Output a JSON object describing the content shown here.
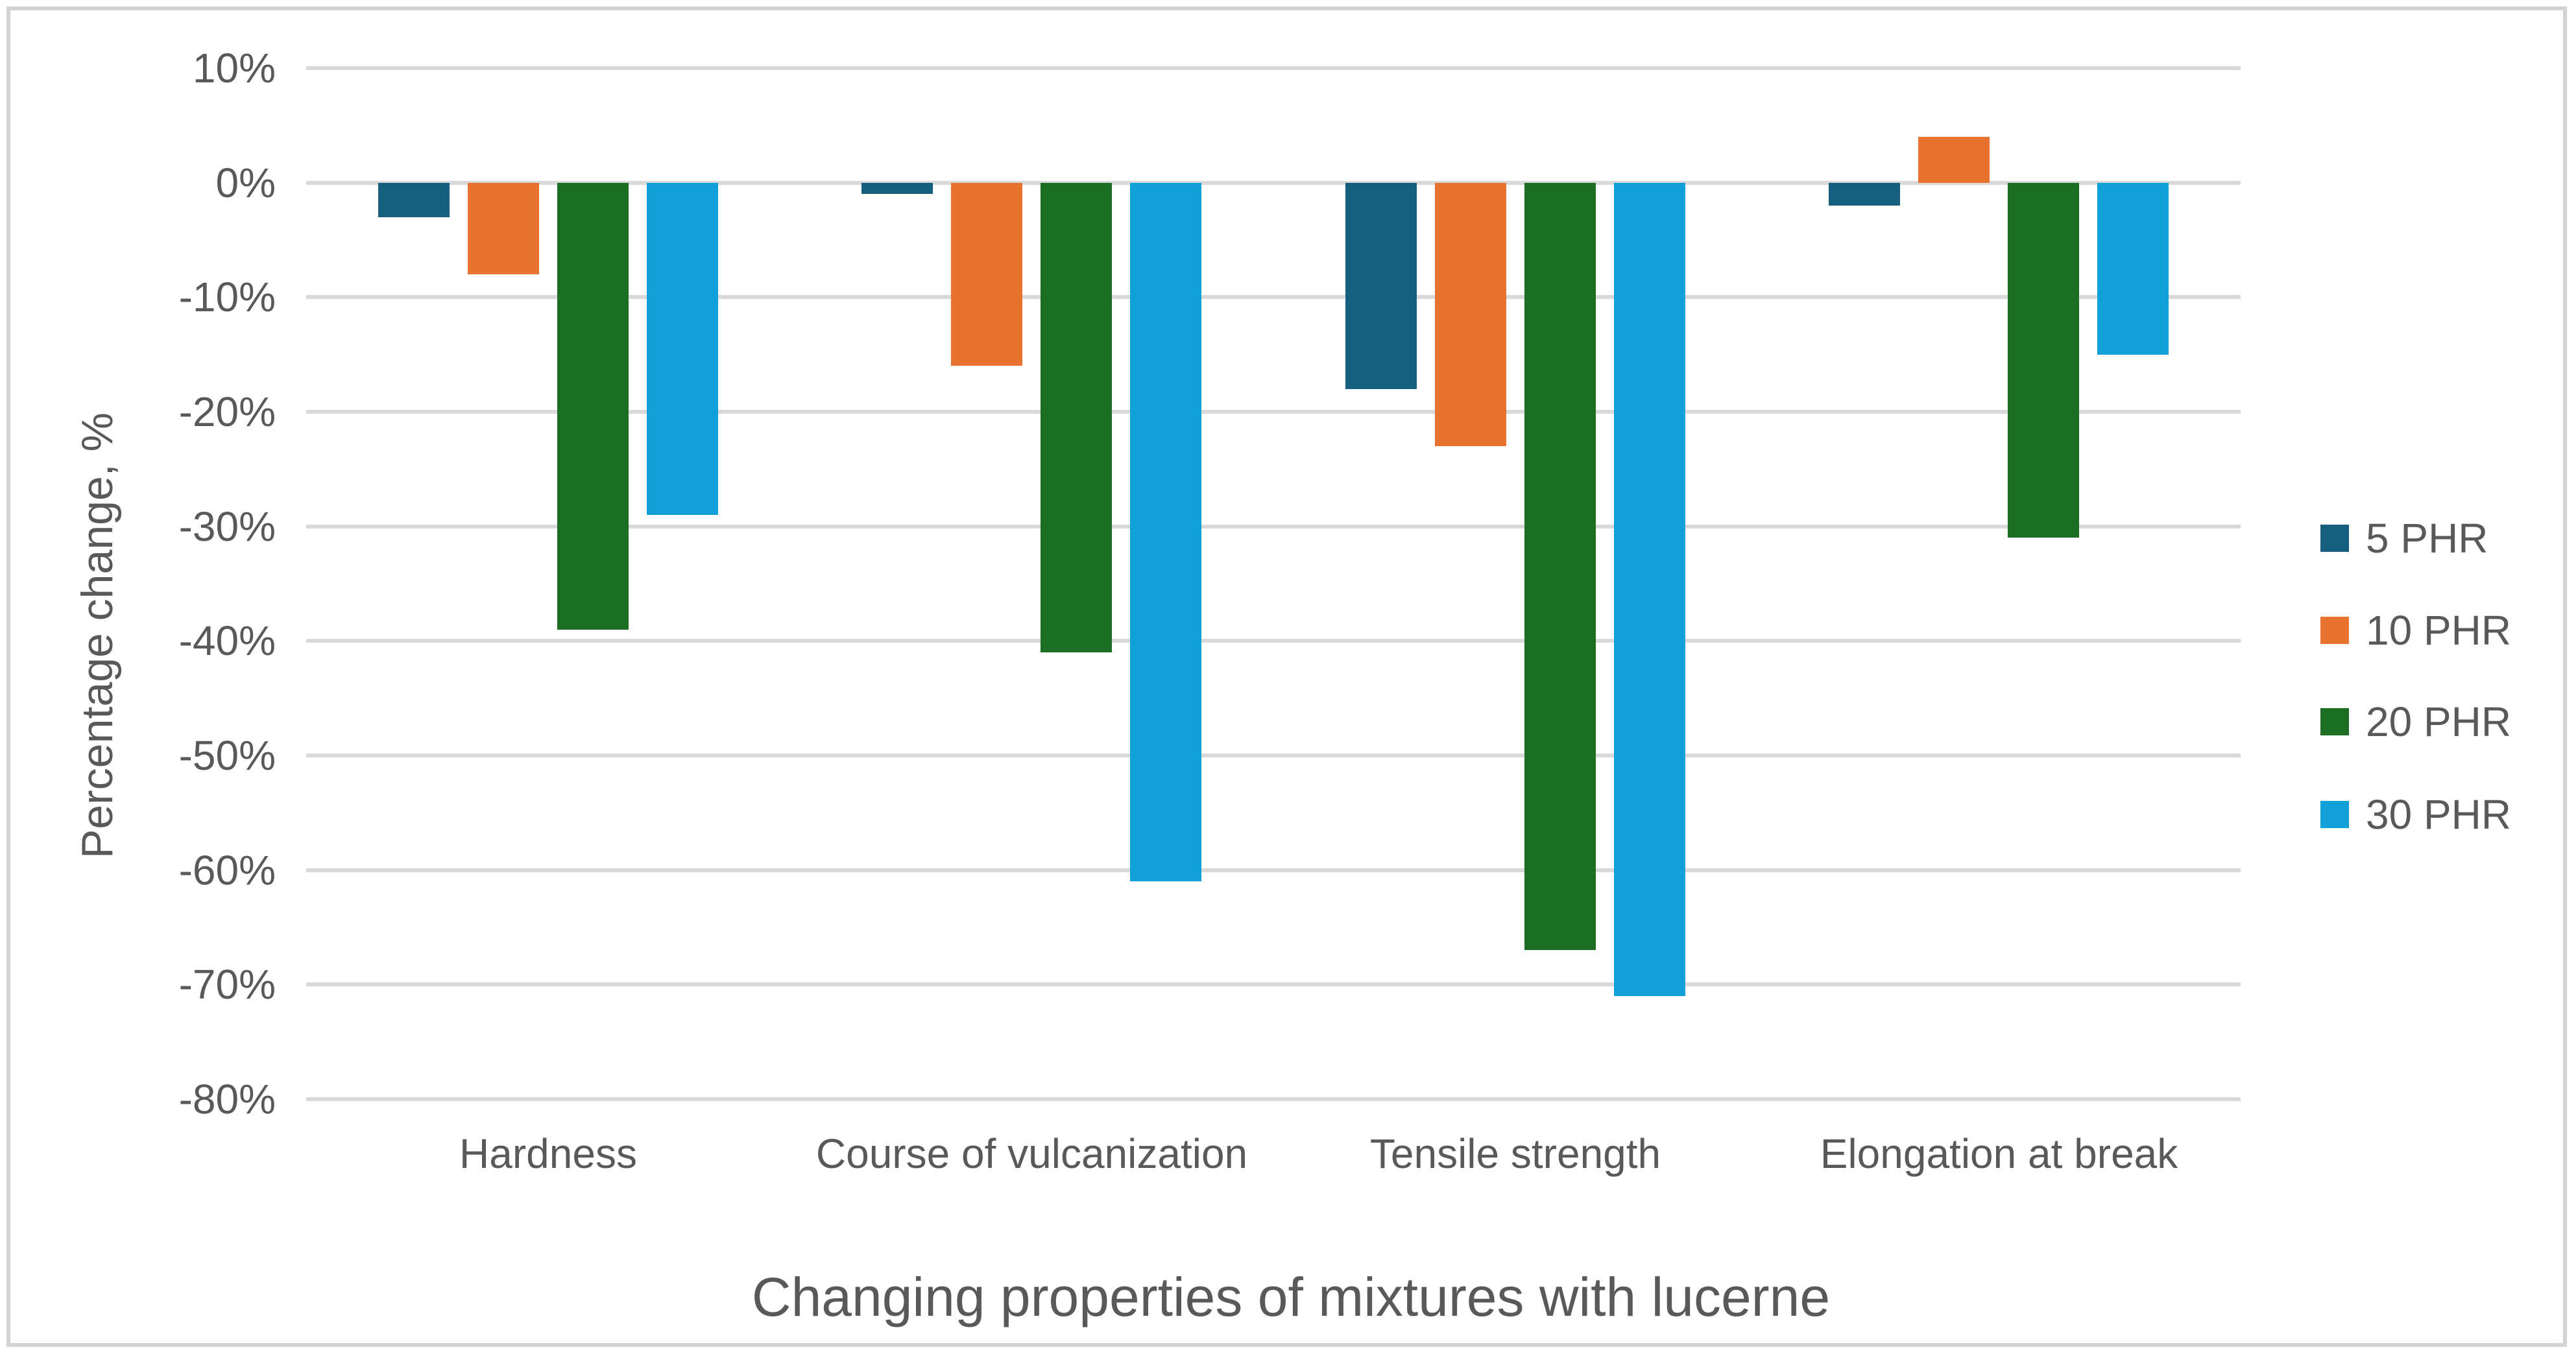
{
  "chart_data": {
    "type": "bar",
    "title": "",
    "xlabel": "Changing properties of mixtures with lucerne",
    "ylabel": "Percentage change, %",
    "categories": [
      "Hardness",
      "Course of vulcanization",
      "Tensile strength",
      "Elongation at break"
    ],
    "series": [
      {
        "name": "5 PHR",
        "color": "#175F7E",
        "values": [
          -3,
          -1,
          -18,
          -2
        ]
      },
      {
        "name": "10 PHR",
        "color": "#E87330",
        "values": [
          -8,
          -16,
          -23,
          4
        ]
      },
      {
        "name": "20 PHR",
        "color": "#1C6E25",
        "values": [
          -39,
          -41,
          -67,
          -31
        ]
      },
      {
        "name": "30 PHR",
        "color": "#12A0D8",
        "values": [
          -29,
          -61,
          -71,
          -15
        ]
      }
    ],
    "y_ticks": [
      "10%",
      "0%",
      "-10%",
      "-20%",
      "-30%",
      "-40%",
      "-50%",
      "-60%",
      "-70%",
      "-80%"
    ],
    "y_tick_values": [
      10,
      0,
      -10,
      -20,
      -30,
      -40,
      -50,
      -60,
      -70,
      -80
    ],
    "ylim": [
      -80,
      10
    ],
    "grid": true,
    "legend_position": "right"
  },
  "colors": {
    "text": "#595959",
    "gridline": "#D9D9D9",
    "border": "#D3D3D3",
    "background": "#FFFFFF"
  }
}
